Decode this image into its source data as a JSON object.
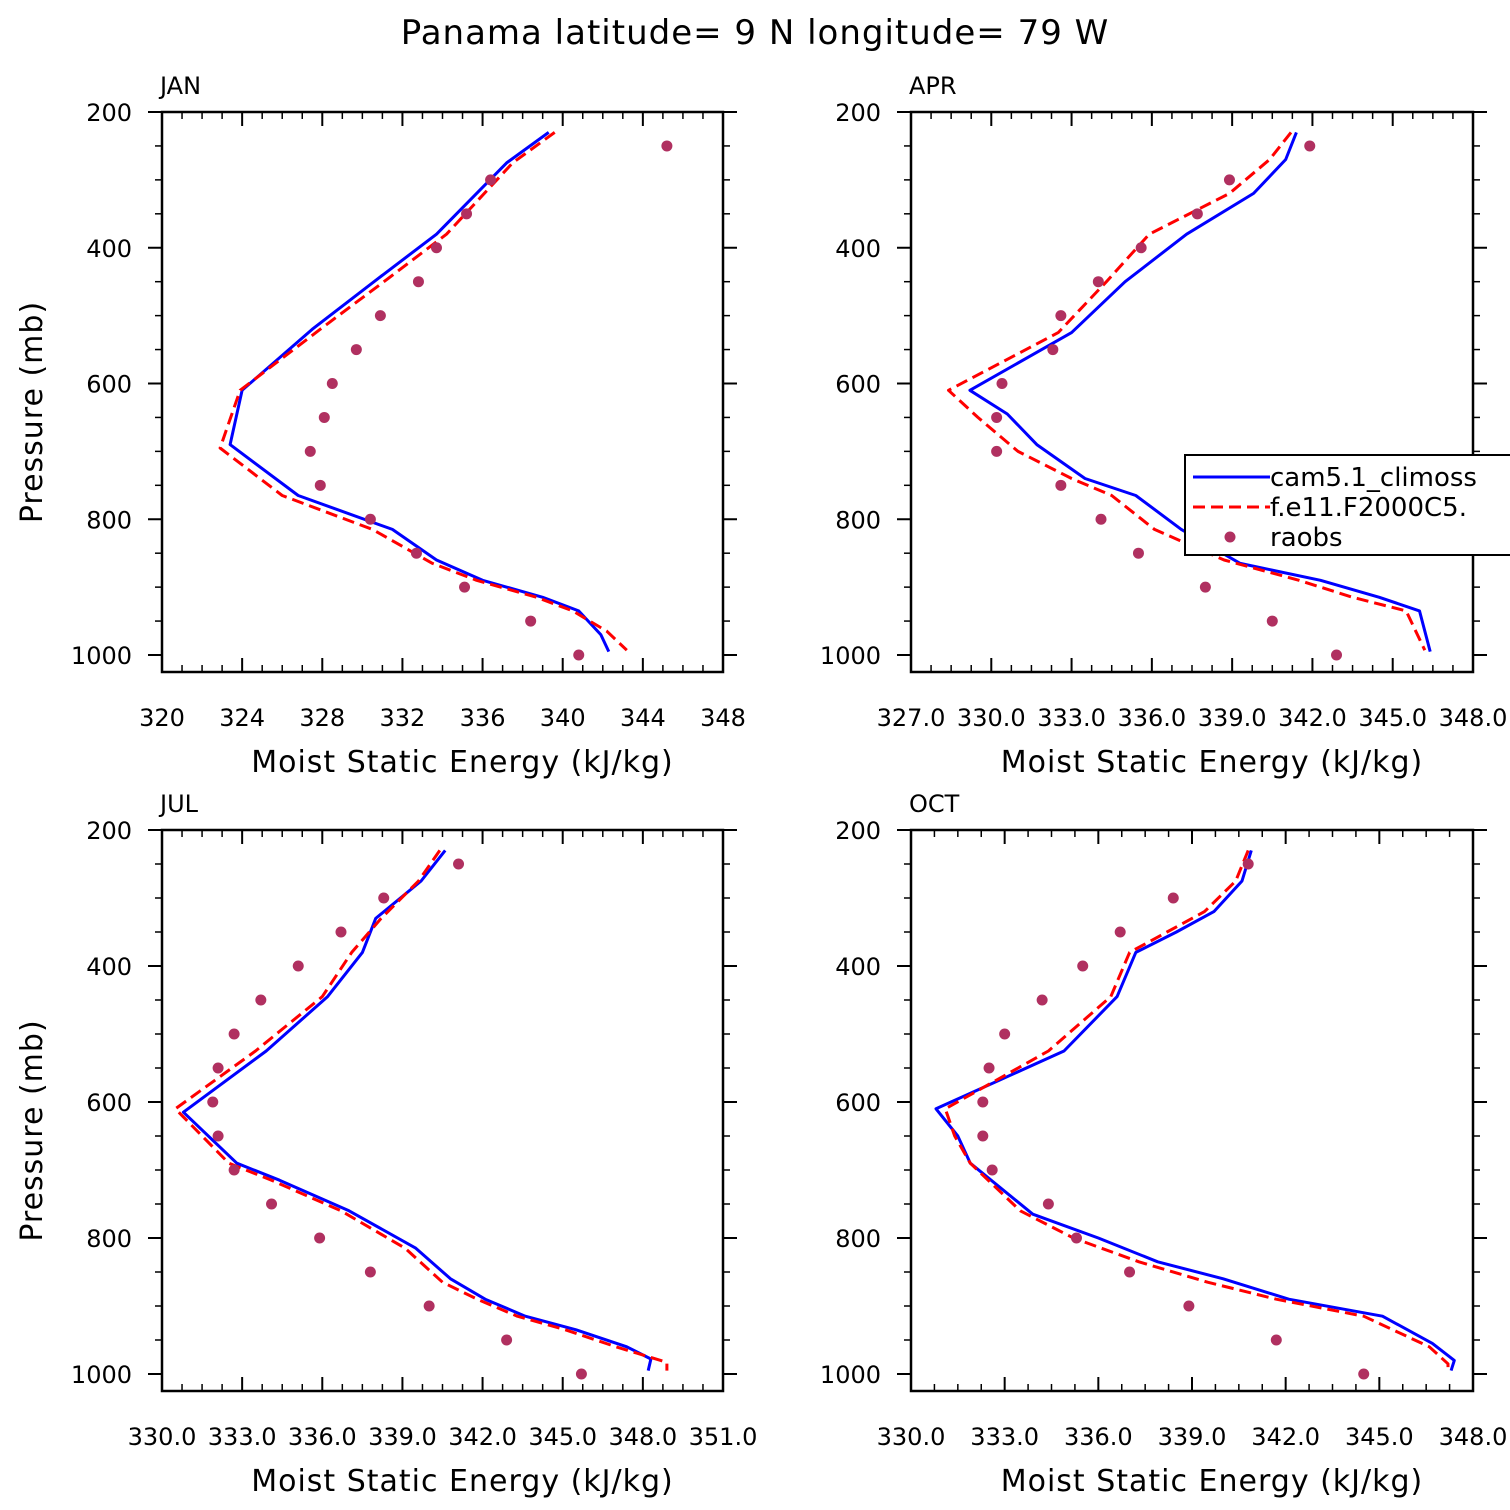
{
  "figure": {
    "title": "Panama  latitude= 9 N longitude= 79 W"
  },
  "colors": {
    "cam": "#0000ff",
    "f11": "#ff0000",
    "raobs": "#b03060",
    "axis": "#000000"
  },
  "legend": {
    "entries": [
      "cam5.1_climoss",
      "f.e11.F2000C5.",
      "raobs"
    ]
  },
  "chart_data": [
    {
      "type": "line",
      "panel": "JAN",
      "title": "JAN",
      "xlabel": "Moist Static Energy (kJ/kg)",
      "ylabel": "Pressure (mb)",
      "xlim": [
        320,
        348
      ],
      "ylim": [
        1000,
        200
      ],
      "y_reversed": true,
      "grid": false,
      "xticks": [
        "320",
        "324",
        "328",
        "332",
        "336",
        "340",
        "344",
        "348"
      ],
      "yticks": [
        "200",
        "400",
        "600",
        "800",
        "1000"
      ],
      "series": [
        {
          "name": "cam5.1_climoss",
          "style": "solid",
          "color": "#0000ff",
          "x": [
            339.3,
            337.2,
            333.7,
            330.8,
            327.5,
            324.0,
            323.4,
            326.8,
            331.5,
            333.7,
            336.0,
            339.0,
            340.8,
            341.9,
            342.3
          ],
          "y": [
            230,
            275,
            380,
            445,
            520,
            610,
            690,
            765,
            815,
            860,
            890,
            915,
            935,
            970,
            995
          ]
        },
        {
          "name": "f.e11.F2000C5.",
          "style": "dashed",
          "color": "#ff0000",
          "x": [
            339.6,
            337.5,
            334.2,
            331.3,
            327.9,
            323.9,
            322.9,
            326.0,
            330.5,
            333.5,
            335.7,
            338.7,
            340.5,
            342.2,
            343.2
          ],
          "y": [
            230,
            275,
            380,
            445,
            520,
            610,
            695,
            765,
            815,
            865,
            890,
            915,
            935,
            965,
            993
          ]
        },
        {
          "name": "raobs",
          "style": "markers",
          "color": "#b03060",
          "x": [
            345.2,
            336.4,
            335.2,
            333.7,
            332.8,
            330.9,
            329.7,
            328.5,
            328.1,
            327.4,
            327.9,
            330.4,
            332.7,
            335.1,
            338.4,
            340.8
          ],
          "y": [
            250,
            300,
            350,
            400,
            450,
            500,
            550,
            600,
            650,
            700,
            750,
            800,
            850,
            900,
            950,
            1000
          ]
        }
      ]
    },
    {
      "type": "line",
      "panel": "APR",
      "title": "APR",
      "xlabel": "Moist Static Energy (kJ/kg)",
      "ylabel": "",
      "xlim": [
        327.0,
        348.0
      ],
      "ylim": [
        1000,
        200
      ],
      "y_reversed": true,
      "grid": false,
      "xticks": [
        "327.0",
        "330.0",
        "333.0",
        "336.0",
        "339.0",
        "342.0",
        "345.0",
        "348.0"
      ],
      "yticks": [
        "200",
        "400",
        "600",
        "800",
        "1000"
      ],
      "series": [
        {
          "name": "cam5.1_climoss",
          "style": "solid",
          "color": "#0000ff",
          "x": [
            341.4,
            341.0,
            339.8,
            337.3,
            335.0,
            333.0,
            329.2,
            330.6,
            331.7,
            333.5,
            335.4,
            337.1,
            339.3,
            342.3,
            344.5,
            346.0,
            346.4
          ],
          "y": [
            230,
            270,
            320,
            380,
            450,
            525,
            610,
            645,
            690,
            740,
            765,
            815,
            865,
            890,
            915,
            935,
            995
          ]
        },
        {
          "name": "f.e11.F2000C5.",
          "style": "dashed",
          "color": "#ff0000",
          "x": [
            341.2,
            340.4,
            338.9,
            335.9,
            334.3,
            332.5,
            328.4,
            329.5,
            331.0,
            333.0,
            334.5,
            336.1,
            338.7,
            341.5,
            343.5,
            345.5,
            346.2
          ],
          "y": [
            230,
            270,
            320,
            380,
            450,
            525,
            610,
            650,
            700,
            740,
            765,
            815,
            860,
            890,
            915,
            935,
            993
          ]
        },
        {
          "name": "raobs",
          "style": "markers",
          "color": "#b03060",
          "x": [
            341.9,
            338.9,
            337.7,
            335.6,
            334.0,
            332.6,
            332.3,
            330.4,
            330.2,
            330.2,
            332.6,
            334.1,
            335.5,
            338.0,
            340.5,
            342.9
          ],
          "y": [
            250,
            300,
            350,
            400,
            450,
            500,
            550,
            600,
            650,
            700,
            750,
            800,
            850,
            900,
            950,
            1000
          ]
        }
      ]
    },
    {
      "type": "line",
      "panel": "JUL",
      "title": "JUL",
      "xlabel": "Moist Static Energy (kJ/kg)",
      "ylabel": "Pressure (mb)",
      "xlim": [
        330.0,
        351.0
      ],
      "ylim": [
        1000,
        200
      ],
      "y_reversed": true,
      "grid": false,
      "xticks": [
        "330.0",
        "333.0",
        "336.0",
        "339.0",
        "342.0",
        "345.0",
        "348.0",
        "351.0"
      ],
      "yticks": [
        "200",
        "400",
        "600",
        "800",
        "1000"
      ],
      "series": [
        {
          "name": "cam5.1_climoss",
          "style": "solid",
          "color": "#0000ff",
          "x": [
            340.6,
            339.7,
            338.0,
            337.5,
            336.2,
            333.9,
            330.8,
            332.8,
            334.4,
            337.0,
            339.5,
            340.8,
            342.1,
            343.6,
            345.5,
            347.4,
            348.3,
            348.2
          ],
          "y": [
            230,
            275,
            330,
            380,
            445,
            525,
            615,
            690,
            715,
            760,
            815,
            860,
            890,
            915,
            935,
            960,
            978,
            995
          ]
        },
        {
          "name": "f.e11.F2000C5.",
          "style": "dashed",
          "color": "#ff0000",
          "x": [
            340.4,
            339.6,
            338.2,
            337.1,
            336.0,
            333.5,
            330.5,
            332.5,
            334.1,
            336.7,
            339.1,
            340.5,
            341.8,
            343.3,
            345.1,
            347.0,
            348.9,
            348.9
          ],
          "y": [
            230,
            275,
            330,
            380,
            445,
            525,
            610,
            690,
            715,
            760,
            815,
            865,
            890,
            915,
            935,
            960,
            983,
            995
          ]
        },
        {
          "name": "raobs",
          "style": "markers",
          "color": "#b03060",
          "x": [
            341.1,
            338.3,
            336.7,
            335.1,
            333.7,
            332.7,
            332.1,
            331.9,
            332.1,
            332.7,
            334.1,
            335.9,
            337.8,
            340.0,
            342.9,
            345.7
          ],
          "y": [
            250,
            300,
            350,
            400,
            450,
            500,
            550,
            600,
            650,
            700,
            750,
            800,
            850,
            900,
            950,
            1000
          ]
        }
      ]
    },
    {
      "type": "line",
      "panel": "OCT",
      "title": "OCT",
      "xlabel": "Moist Static Energy (kJ/kg)",
      "ylabel": "",
      "xlim": [
        330.0,
        348.0
      ],
      "ylim": [
        1000,
        200
      ],
      "y_reversed": true,
      "grid": false,
      "xticks": [
        "330.0",
        "333.0",
        "336.0",
        "339.0",
        "342.0",
        "345.0",
        "348.0"
      ],
      "yticks": [
        "200",
        "400",
        "600",
        "800",
        "1000"
      ],
      "series": [
        {
          "name": "cam5.1_climoss",
          "style": "solid",
          "color": "#0000ff",
          "x": [
            340.9,
            340.6,
            339.7,
            338.5,
            337.2,
            336.6,
            334.9,
            330.8,
            331.5,
            331.9,
            333.9,
            336.0,
            337.9,
            340.0,
            342.1,
            345.1,
            346.7,
            347.4,
            347.3
          ],
          "y": [
            230,
            275,
            320,
            350,
            380,
            445,
            525,
            610,
            650,
            690,
            765,
            800,
            835,
            860,
            890,
            915,
            955,
            980,
            995
          ]
        },
        {
          "name": "f.e11.F2000C5.",
          "style": "dashed",
          "color": "#ff0000",
          "x": [
            340.8,
            340.4,
            339.4,
            338.2,
            337.0,
            336.4,
            334.4,
            331.1,
            331.4,
            331.9,
            333.5,
            335.2,
            337.3,
            339.5,
            341.7,
            344.5,
            346.6,
            347.2,
            347.2
          ],
          "y": [
            230,
            275,
            320,
            350,
            380,
            445,
            525,
            610,
            650,
            690,
            760,
            800,
            835,
            865,
            890,
            915,
            960,
            985,
            995
          ]
        },
        {
          "name": "raobs",
          "style": "markers",
          "color": "#b03060",
          "x": [
            340.8,
            338.4,
            336.7,
            335.5,
            334.2,
            333.0,
            332.5,
            332.3,
            332.3,
            332.6,
            334.4,
            335.3,
            337.0,
            338.9,
            341.7,
            344.5
          ],
          "y": [
            250,
            300,
            350,
            400,
            450,
            500,
            550,
            600,
            650,
            700,
            750,
            800,
            850,
            900,
            950,
            1000
          ]
        }
      ]
    }
  ]
}
